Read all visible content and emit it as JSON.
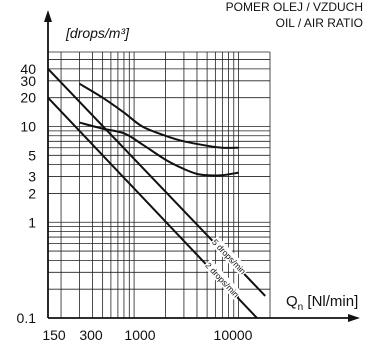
{
  "chart_data": {
    "type": "line",
    "title_lines": [
      "POMER OLEJ / VZDUCH",
      "OIL / AIR RATIO"
    ],
    "ylabel": "[drops/m³]",
    "xlabel": "Q",
    "xlabel_sub": "n",
    "xlabel_unit": " [Nl/min]",
    "x_scale": "log",
    "y_scale": "log",
    "xlim": [
      150,
      20000
    ],
    "ylim": [
      0.1,
      60
    ],
    "grid": true,
    "x_ticks": [
      150,
      300,
      1000,
      10000
    ],
    "x_tick_labels": [
      "150",
      "300",
      "1000",
      "10000"
    ],
    "y_ticks": [
      0.1,
      1,
      2,
      3,
      5,
      10,
      20,
      30,
      40
    ],
    "y_tick_labels": [
      "0.1",
      "1",
      "2",
      "3",
      "5",
      "10",
      "20",
      "30",
      "40"
    ],
    "series": [
      {
        "name": "5 drops/min",
        "kind": "straight",
        "points": [
          [
            150,
            40
          ],
          [
            18000,
            0.17
          ]
        ]
      },
      {
        "name": "2 drops/min",
        "kind": "straight",
        "points": [
          [
            150,
            20
          ],
          [
            15000,
            0.1
          ]
        ]
      },
      {
        "name": "",
        "kind": "curve",
        "points": [
          [
            300,
            28
          ],
          [
            500,
            20
          ],
          [
            800,
            14
          ],
          [
            1200,
            10
          ],
          [
            2000,
            8
          ],
          [
            3000,
            7
          ],
          [
            5000,
            6.3
          ],
          [
            7000,
            6
          ],
          [
            10000,
            6
          ]
        ]
      },
      {
        "name": "",
        "kind": "curve",
        "points": [
          [
            300,
            11
          ],
          [
            500,
            9.5
          ],
          [
            800,
            8.5
          ],
          [
            1200,
            6.5
          ],
          [
            2000,
            4.5
          ],
          [
            3000,
            3.6
          ],
          [
            4000,
            3.2
          ],
          [
            5000,
            3.1
          ],
          [
            7000,
            3.1
          ],
          [
            10000,
            3.3
          ]
        ]
      }
    ]
  }
}
